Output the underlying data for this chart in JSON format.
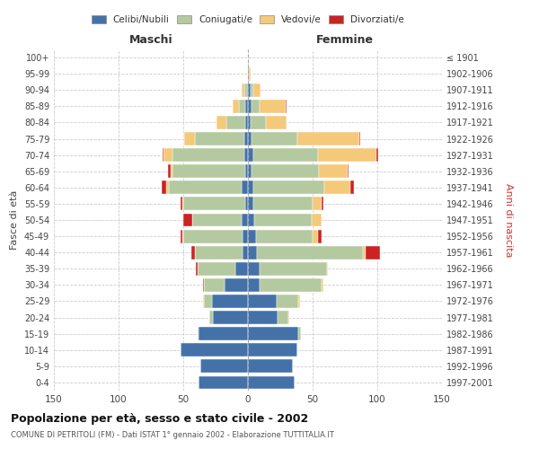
{
  "age_groups": [
    "0-4",
    "5-9",
    "10-14",
    "15-19",
    "20-24",
    "25-29",
    "30-34",
    "35-39",
    "40-44",
    "45-49",
    "50-54",
    "55-59",
    "60-64",
    "65-69",
    "70-74",
    "75-79",
    "80-84",
    "85-89",
    "90-94",
    "95-99",
    "100+"
  ],
  "birth_years": [
    "1997-2001",
    "1992-1996",
    "1987-1991",
    "1982-1986",
    "1977-1981",
    "1972-1976",
    "1967-1971",
    "1962-1966",
    "1957-1961",
    "1952-1956",
    "1947-1951",
    "1942-1946",
    "1937-1941",
    "1932-1936",
    "1927-1931",
    "1922-1926",
    "1917-1921",
    "1912-1916",
    "1907-1911",
    "1902-1906",
    "≤ 1901"
  ],
  "male": {
    "celibe": [
      38,
      37,
      52,
      38,
      27,
      28,
      18,
      10,
      4,
      4,
      5,
      2,
      5,
      2,
      3,
      3,
      2,
      2,
      1,
      0,
      0
    ],
    "coniugato": [
      0,
      0,
      0,
      1,
      3,
      6,
      16,
      29,
      37,
      46,
      38,
      48,
      56,
      56,
      55,
      38,
      15,
      5,
      2,
      0,
      0
    ],
    "vedovo": [
      0,
      0,
      0,
      0,
      0,
      1,
      0,
      0,
      0,
      1,
      0,
      1,
      2,
      2,
      7,
      8,
      7,
      5,
      2,
      0,
      0
    ],
    "divorziato": [
      0,
      0,
      0,
      0,
      0,
      0,
      1,
      1,
      3,
      1,
      7,
      1,
      4,
      2,
      1,
      0,
      0,
      0,
      0,
      0,
      0
    ]
  },
  "female": {
    "nubile": [
      36,
      35,
      38,
      39,
      23,
      22,
      9,
      9,
      7,
      6,
      5,
      4,
      4,
      3,
      4,
      3,
      2,
      3,
      2,
      1,
      0
    ],
    "coniugata": [
      0,
      0,
      0,
      2,
      8,
      17,
      48,
      52,
      82,
      44,
      44,
      46,
      55,
      52,
      50,
      35,
      12,
      6,
      2,
      0,
      0
    ],
    "vedova": [
      0,
      0,
      0,
      0,
      1,
      1,
      1,
      1,
      2,
      4,
      8,
      7,
      20,
      22,
      45,
      48,
      16,
      20,
      6,
      1,
      0
    ],
    "divorziata": [
      0,
      0,
      0,
      0,
      0,
      0,
      0,
      0,
      11,
      3,
      0,
      1,
      3,
      1,
      2,
      1,
      0,
      1,
      0,
      0,
      0
    ]
  },
  "colors": {
    "celibe": "#4472a8",
    "coniugato": "#b5c9a0",
    "vedovo": "#f5c97a",
    "divorziato": "#cc2222"
  },
  "title": "Popolazione per età, sesso e stato civile - 2002",
  "subtitle": "COMUNE DI PETRITOLI (FM) - Dati ISTAT 1° gennaio 2002 - Elaborazione TUTTITALIA.IT",
  "xlabel_left": "Maschi",
  "xlabel_right": "Femmine",
  "ylabel_left": "Fasce di età",
  "ylabel_right": "Anni di nascita",
  "xlim": 150,
  "legend_labels": [
    "Celibi/Nubili",
    "Coniugati/e",
    "Vedovi/e",
    "Divorziati/e"
  ],
  "background_color": "#ffffff"
}
